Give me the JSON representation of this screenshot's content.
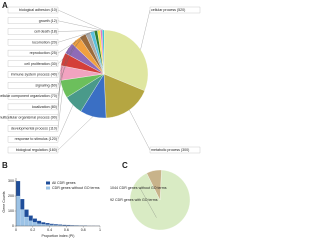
{
  "chart_data": [
    {
      "type": "pie",
      "panel": "A",
      "categories": [
        "cellular process",
        "metabolic process",
        "biological regulation",
        "response to stimulus",
        "developmental process",
        "multicellular organismal process",
        "localization",
        "cellular component organization",
        "signaling",
        "immune system process",
        "cell proliferation",
        "reproduction",
        "locomotion",
        "cell death",
        "growth",
        "biological adhesion"
      ],
      "values": [
        520,
        300,
        160,
        120,
        110,
        90,
        80,
        70,
        60,
        40,
        30,
        25,
        20,
        18,
        12,
        10
      ],
      "value_labels": [
        "(520)",
        "(300)",
        "(160)",
        "(120)",
        "(110)",
        "(90)",
        "(80)",
        "(70)",
        "(60)",
        "(40)",
        "(30)",
        "(25)",
        "(20)",
        "(18)",
        "(12)",
        "(10)"
      ],
      "colors": [
        "#dfe6a0",
        "#b5a642",
        "#3a6fc4",
        "#4a9a8a",
        "#6cbf5c",
        "#f2a3c0",
        "#d43f3a",
        "#8e6bb8",
        "#f0a040",
        "#9b6b3c",
        "#aaaaaa",
        "#5bc0de",
        "#2e7d32",
        "#f5e050",
        "#e377c2",
        "#17becf"
      ]
    },
    {
      "type": "histogram",
      "panel": "B",
      "xlabel": "Proportion index (PI)",
      "ylabel": "Gene Counts",
      "bins": [
        0,
        0.05,
        0.1,
        0.15,
        0.2,
        0.25,
        0.3,
        0.35,
        0.4,
        0.45,
        0.5,
        0.55,
        0.6,
        0.65,
        0.7,
        0.75,
        0.8,
        0.85,
        0.9,
        0.95,
        1
      ],
      "series": [
        {
          "name": "All CDR genes",
          "color": "#1f4e9a",
          "values": [
            300,
            180,
            110,
            70,
            50,
            35,
            25,
            20,
            15,
            12,
            10,
            8,
            7,
            6,
            5,
            4,
            4,
            3,
            3,
            2
          ]
        },
        {
          "name": "CDR genes without GO terms",
          "color": "#9cc3e6",
          "values": [
            200,
            110,
            60,
            35,
            25,
            15,
            12,
            9,
            7,
            5,
            4,
            3,
            3,
            2,
            2,
            1,
            1,
            1,
            1,
            1
          ]
        }
      ],
      "xlim": [
        0,
        1
      ],
      "xticks": [
        0,
        0.2,
        0.4,
        0.6,
        0.8,
        1
      ],
      "ylim": [
        0,
        320
      ],
      "yticks": [
        0,
        100,
        200,
        300
      ]
    },
    {
      "type": "pie",
      "panel": "C",
      "categories": [
        "CDR genes without GO terms",
        "CDR genes with GO terms"
      ],
      "values": [
        1044,
        92
      ],
      "colors": [
        "#d9ebc4",
        "#c8b38a"
      ]
    }
  ]
}
